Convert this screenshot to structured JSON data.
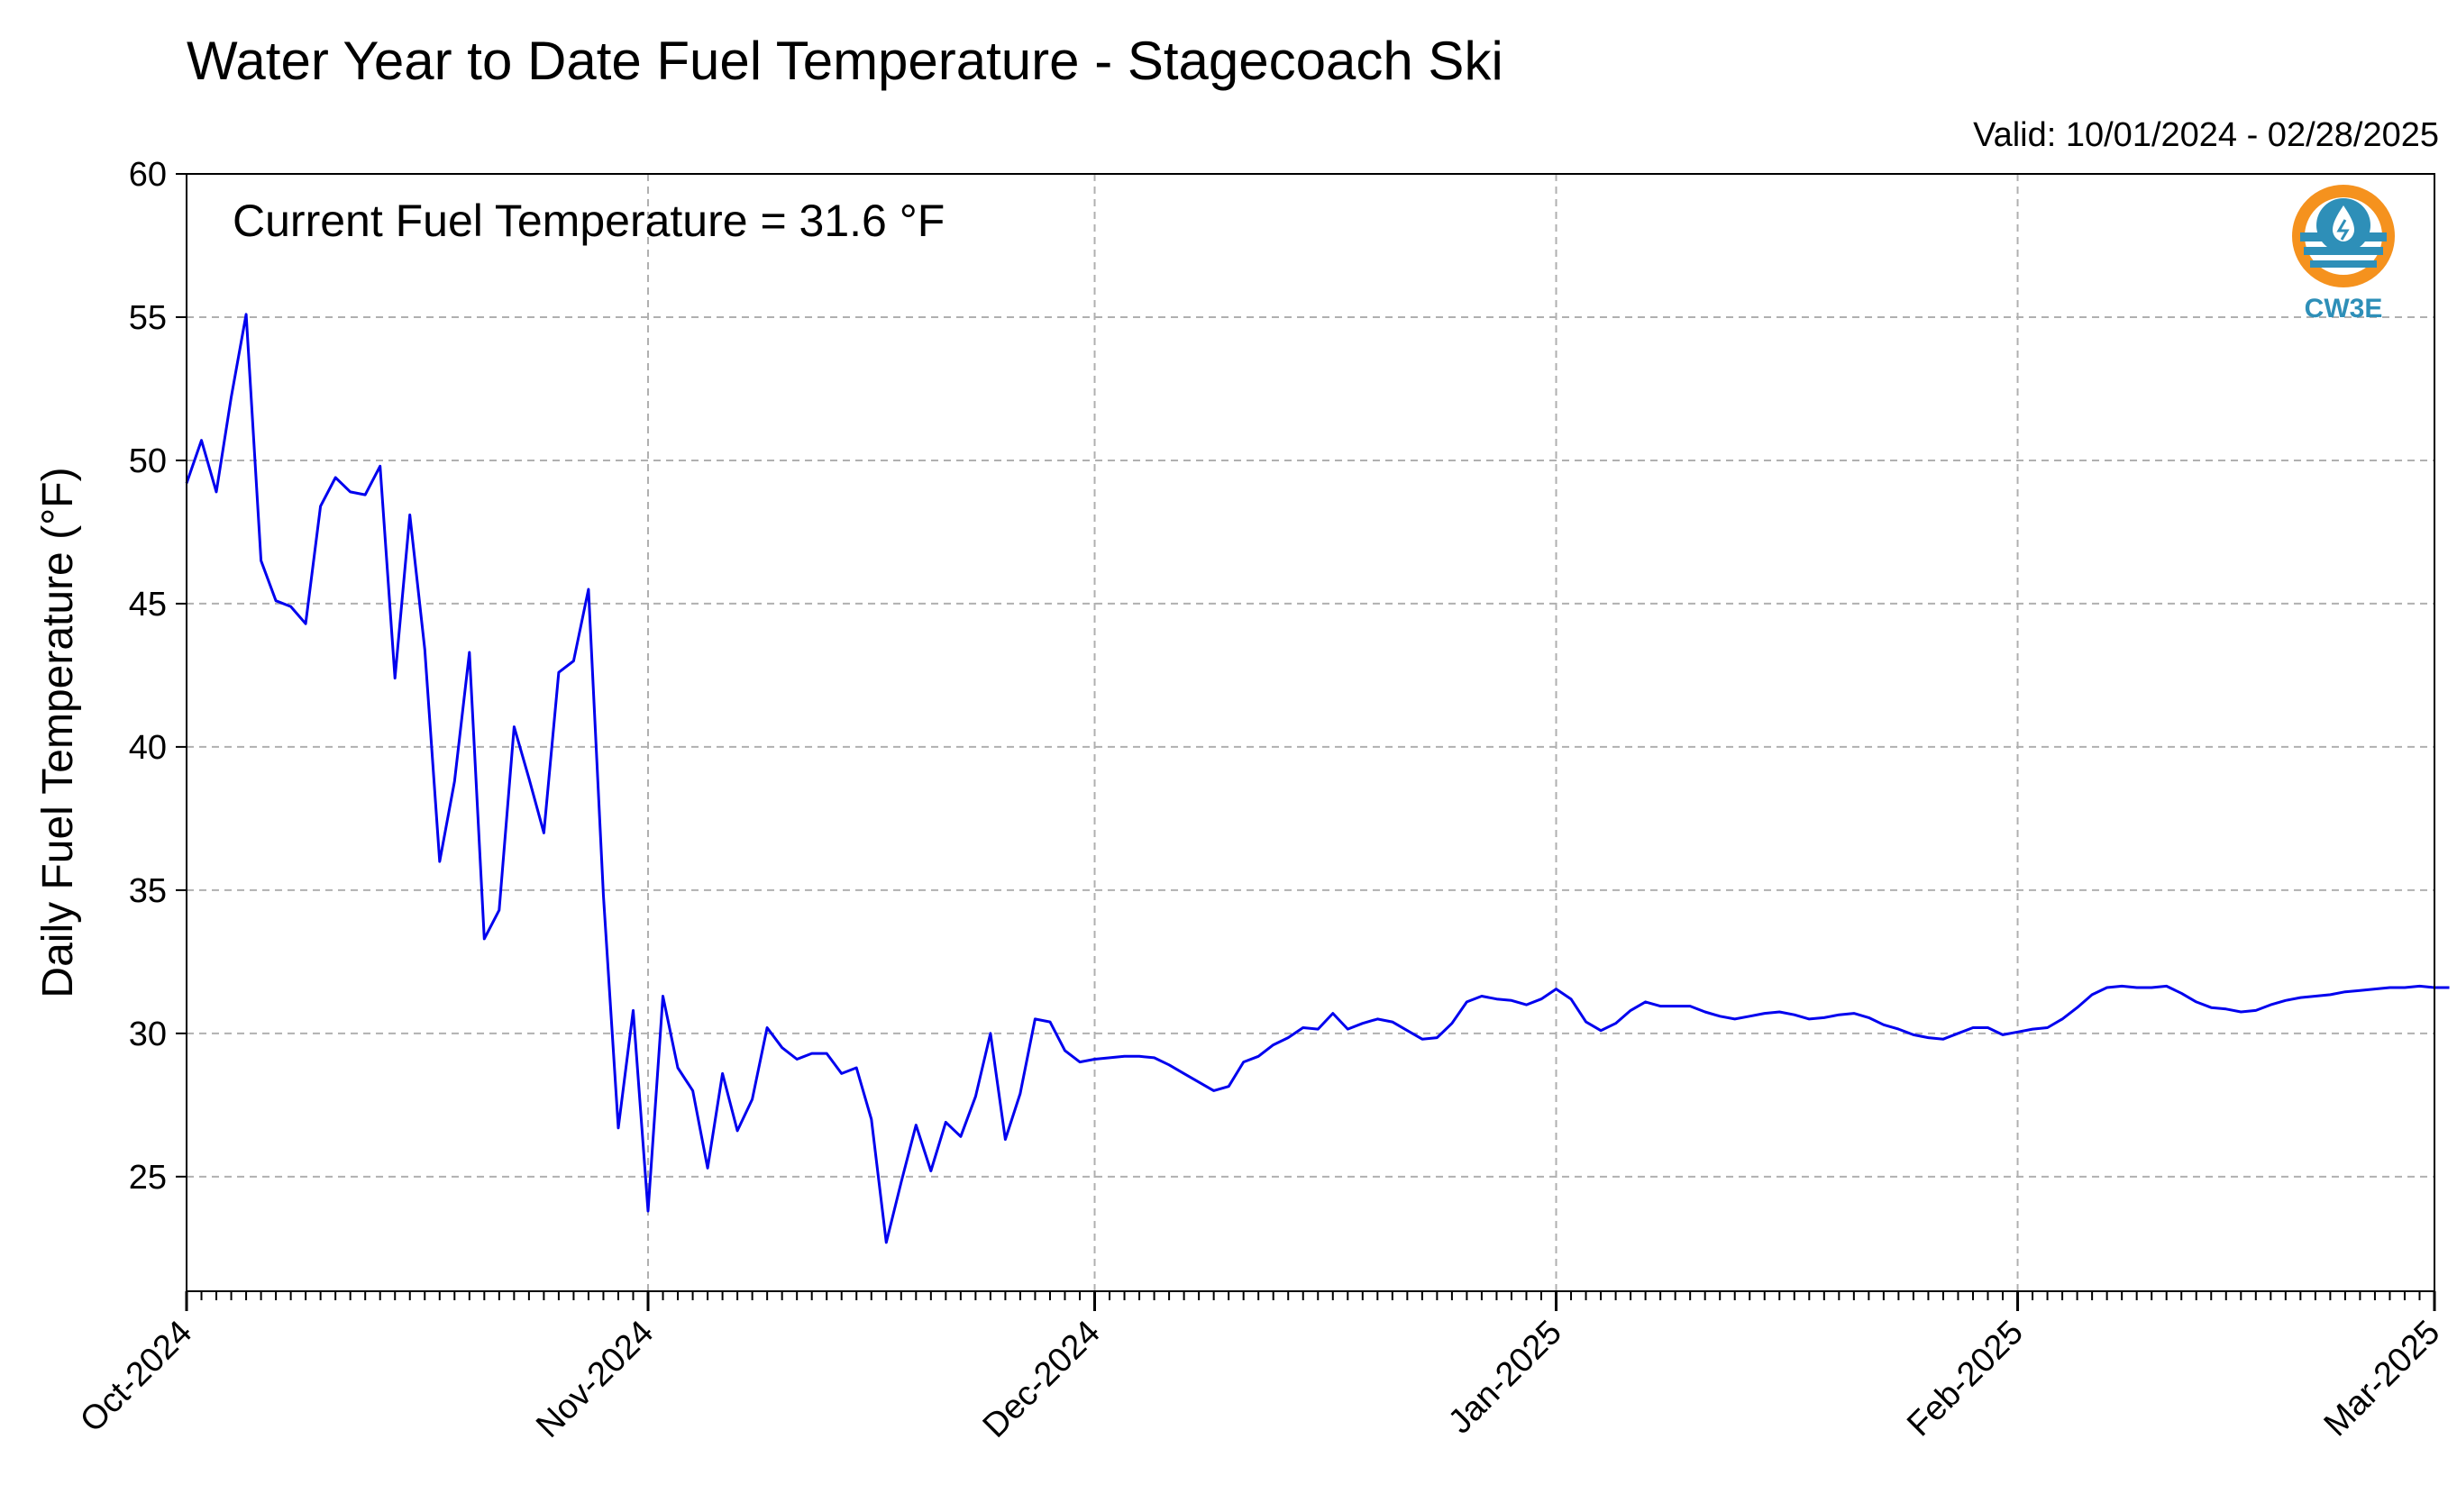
{
  "chart_data": {
    "type": "line",
    "title": "Water Year to Date Fuel Temperature - Stagecoach Ski",
    "subtitle": "Valid: 10/01/2024 - 02/28/2025",
    "annotation": "Current Fuel Temperature = 31.6 °F",
    "xlabel": "",
    "ylabel": "Daily Fuel Temperature (°F)",
    "xlim": [
      "2024-10-01",
      "2025-03-01"
    ],
    "ylim": [
      21,
      60
    ],
    "yticks": [
      25,
      30,
      35,
      40,
      45,
      50,
      55,
      60
    ],
    "xticks": [
      {
        "date": "2024-10-01",
        "label": "Oct-2024"
      },
      {
        "date": "2024-11-01",
        "label": "Nov-2024"
      },
      {
        "date": "2024-12-01",
        "label": "Dec-2024"
      },
      {
        "date": "2025-01-01",
        "label": "Jan-2025"
      },
      {
        "date": "2025-02-01",
        "label": "Feb-2025"
      },
      {
        "date": "2025-03-01",
        "label": "Mar-2025"
      }
    ],
    "grid": true,
    "line_color": "#0000ee",
    "series": [
      {
        "start_date": "2024-10-01",
        "interval": "daily",
        "values": [
          49.2,
          50.7,
          48.9,
          52.2,
          55.1,
          46.5,
          45.1,
          44.9,
          44.3,
          48.4,
          49.4,
          48.9,
          48.8,
          49.8,
          42.4,
          48.1,
          43.4,
          36.0,
          38.8,
          43.3,
          33.3,
          34.3,
          40.7,
          38.9,
          37.0,
          42.6,
          43.0,
          45.5,
          34.8,
          26.7,
          30.8,
          23.8,
          31.3,
          28.8,
          28.0,
          25.3,
          28.6,
          26.6,
          27.7,
          30.2,
          29.5,
          29.1,
          29.3,
          29.3,
          28.6,
          28.8,
          27.0,
          22.7,
          24.8,
          26.8,
          25.2,
          26.9,
          26.4,
          27.8,
          30.0,
          26.3,
          27.9,
          30.5,
          30.4,
          29.4,
          29.0,
          29.1,
          29.15,
          29.2,
          29.2,
          29.15,
          28.9,
          28.6,
          28.3,
          28.0,
          28.15,
          29.0,
          29.2,
          29.6,
          29.85,
          30.2,
          30.15,
          30.7,
          30.15,
          30.35,
          30.5,
          30.4,
          30.1,
          29.8,
          29.85,
          30.35,
          31.1,
          31.3,
          31.2,
          31.15,
          31.0,
          31.2,
          31.55,
          31.2,
          30.4,
          30.1,
          30.35,
          30.8,
          31.1,
          30.95,
          30.95,
          30.95,
          30.75,
          30.6,
          30.5,
          30.6,
          30.7,
          30.75,
          30.65,
          30.5,
          30.55,
          30.65,
          30.7,
          30.55,
          30.3,
          30.15,
          29.95,
          29.85,
          29.8,
          30.0,
          30.2,
          30.2,
          29.95,
          30.05,
          30.15,
          30.2,
          30.5,
          30.9,
          31.35,
          31.6,
          31.65,
          31.6,
          31.6,
          31.65,
          31.4,
          31.1,
          30.9,
          30.85,
          30.75,
          30.8,
          31.0,
          31.15,
          31.25,
          31.3,
          31.35,
          31.45,
          31.5,
          31.55,
          31.6,
          31.6,
          31.65,
          31.6,
          31.6
        ]
      }
    ]
  },
  "logo": {
    "text": "CW3E",
    "ring_color": "#f5921e",
    "water_color": "#2e8fb8",
    "icon": "water-drop-icon"
  }
}
